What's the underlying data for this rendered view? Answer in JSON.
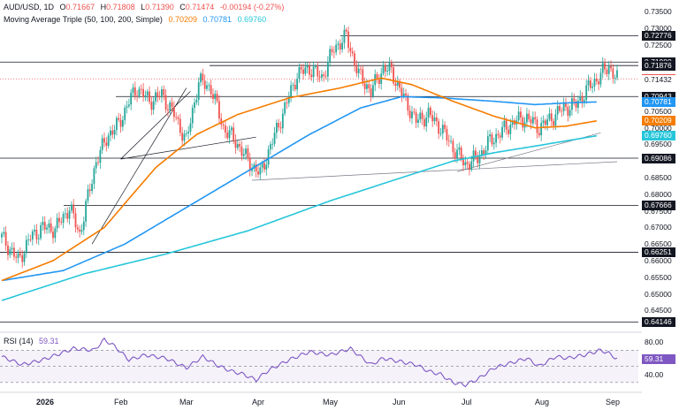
{
  "header": {
    "symbol": "AUD/USD, 1D",
    "ohlc": [
      {
        "label": "O",
        "value": "0.71667"
      },
      {
        "label": "H",
        "value": "0.71808"
      },
      {
        "label": "L",
        "value": "0.71390"
      },
      {
        "label": "C",
        "value": "0.71474"
      }
    ],
    "change": "-0.00194 (-0.27%)",
    "ma_title": "Moving Average Triple (50, 100, 200, Simple)",
    "ma_values": [
      "0.70209",
      "0.70781",
      "0.69760"
    ],
    "rsi_title": "RSI (14)",
    "rsi_value": "59.31"
  },
  "colors": {
    "up": "#26a69a",
    "down": "#ef5350",
    "ma50": "#f57c00",
    "ma100": "#2196f3",
    "ma200": "#26c6da",
    "rsi": "#7e57c2"
  },
  "chart_data": {
    "type": "candlestick",
    "y_range": [
      0.6395,
      0.7385
    ],
    "y_ticks": [
      "0.73500",
      "0.73000",
      "0.72500",
      "0.72000",
      "0.71500",
      "0.71000",
      "0.70500",
      "0.70000",
      "0.69500",
      "0.69000",
      "0.68500",
      "0.68000",
      "0.67500",
      "0.67000",
      "0.66500",
      "0.66000",
      "0.65500",
      "0.65000",
      "0.64500"
    ],
    "x_labels": [
      "2026",
      "Feb",
      "Mar",
      "Apr",
      "May",
      "Jun",
      "Jul",
      "Aug",
      "Sep"
    ],
    "level_labels": [
      {
        "value": 0.72776,
        "text": "0.72776",
        "style": "dark"
      },
      {
        "value": 0.7198,
        "text": "0.71980",
        "style": "dark"
      },
      {
        "value": 0.71876,
        "text": "0.71876",
        "style": "dark"
      },
      {
        "value": 0.71474,
        "text": "0.71474",
        "style": "red"
      },
      {
        "value": 0.71432,
        "text": "0.71432",
        "style": "plain"
      },
      {
        "value": 0.70943,
        "text": "0.70943",
        "style": "dark"
      },
      {
        "value": 0.70781,
        "text": "0.70781",
        "style": "blue"
      },
      {
        "value": 0.70209,
        "text": "0.70209",
        "style": "orange"
      },
      {
        "value": 0.6976,
        "text": "0.69760",
        "style": "cyan"
      },
      {
        "value": 0.69086,
        "text": "0.69086",
        "style": "dark"
      },
      {
        "value": 0.67666,
        "text": "0.67666",
        "style": "dark"
      },
      {
        "value": 0.66251,
        "text": "0.66251",
        "style": "dark"
      },
      {
        "value": 0.64146,
        "text": "0.64146",
        "style": "dark"
      }
    ],
    "close_anchors": [
      [
        0,
        0.667
      ],
      [
        8,
        0.66
      ],
      [
        14,
        0.667
      ],
      [
        20,
        0.67
      ],
      [
        26,
        0.6695
      ],
      [
        33,
        0.676
      ],
      [
        38,
        0.668
      ],
      [
        46,
        0.69
      ],
      [
        52,
        0.698
      ],
      [
        57,
        0.701
      ],
      [
        62,
        0.708
      ],
      [
        66,
        0.712
      ],
      [
        72,
        0.708
      ],
      [
        78,
        0.71
      ],
      [
        84,
        0.704
      ],
      [
        90,
        0.696
      ],
      [
        96,
        0.714
      ],
      [
        102,
        0.712
      ],
      [
        108,
        0.7
      ],
      [
        114,
        0.696
      ],
      [
        120,
        0.69
      ],
      [
        126,
        0.686
      ],
      [
        132,
        0.696
      ],
      [
        138,
        0.706
      ],
      [
        144,
        0.716
      ],
      [
        150,
        0.718
      ],
      [
        156,
        0.715
      ],
      [
        162,
        0.724
      ],
      [
        168,
        0.7275
      ],
      [
        174,
        0.716
      ],
      [
        180,
        0.711
      ],
      [
        186,
        0.718
      ],
      [
        190,
        0.717
      ],
      [
        196,
        0.709
      ],
      [
        202,
        0.702
      ],
      [
        208,
        0.704
      ],
      [
        214,
        0.7
      ],
      [
        220,
        0.694
      ],
      [
        226,
        0.689
      ],
      [
        232,
        0.691
      ],
      [
        238,
        0.696
      ],
      [
        244,
        0.699
      ],
      [
        250,
        0.702
      ],
      [
        256,
        0.703
      ],
      [
        262,
        0.7
      ],
      [
        268,
        0.703
      ],
      [
        274,
        0.706
      ],
      [
        280,
        0.707
      ],
      [
        286,
        0.712
      ],
      [
        292,
        0.716
      ],
      [
        296,
        0.7185
      ],
      [
        300,
        0.7147
      ]
    ],
    "ma50_anchors": [
      [
        0,
        0.654
      ],
      [
        25,
        0.66
      ],
      [
        50,
        0.67
      ],
      [
        75,
        0.688
      ],
      [
        95,
        0.698
      ],
      [
        115,
        0.704
      ],
      [
        140,
        0.709
      ],
      [
        165,
        0.712
      ],
      [
        185,
        0.715
      ],
      [
        200,
        0.713
      ],
      [
        220,
        0.708
      ],
      [
        240,
        0.7035
      ],
      [
        260,
        0.7
      ],
      [
        275,
        0.7005
      ],
      [
        290,
        0.7021
      ]
    ],
    "ma100_anchors": [
      [
        0,
        0.654
      ],
      [
        30,
        0.657
      ],
      [
        60,
        0.665
      ],
      [
        90,
        0.676
      ],
      [
        120,
        0.687
      ],
      [
        150,
        0.698
      ],
      [
        175,
        0.706
      ],
      [
        195,
        0.7094
      ],
      [
        215,
        0.709
      ],
      [
        240,
        0.708
      ],
      [
        260,
        0.707
      ],
      [
        275,
        0.7075
      ],
      [
        290,
        0.7078
      ]
    ],
    "ma200_anchors": [
      [
        0,
        0.648
      ],
      [
        40,
        0.656
      ],
      [
        80,
        0.662
      ],
      [
        120,
        0.669
      ],
      [
        160,
        0.678
      ],
      [
        200,
        0.686
      ],
      [
        220,
        0.69
      ],
      [
        240,
        0.6925
      ],
      [
        260,
        0.6945
      ],
      [
        290,
        0.6976
      ]
    ],
    "rsi_range": [
      20,
      90
    ],
    "rsi_ticks": [
      "80.00",
      "40.00"
    ],
    "rsi_band": [
      30,
      70
    ],
    "rsi_anchors": [
      [
        0,
        62
      ],
      [
        10,
        52
      ],
      [
        20,
        58
      ],
      [
        35,
        72
      ],
      [
        45,
        70
      ],
      [
        50,
        83
      ],
      [
        55,
        75
      ],
      [
        62,
        58
      ],
      [
        70,
        64
      ],
      [
        80,
        60
      ],
      [
        90,
        48
      ],
      [
        98,
        62
      ],
      [
        106,
        50
      ],
      [
        112,
        44
      ],
      [
        118,
        40
      ],
      [
        124,
        33
      ],
      [
        130,
        45
      ],
      [
        140,
        58
      ],
      [
        150,
        68
      ],
      [
        160,
        64
      ],
      [
        170,
        72
      ],
      [
        180,
        52
      ],
      [
        186,
        60
      ],
      [
        194,
        56
      ],
      [
        202,
        52
      ],
      [
        208,
        44
      ],
      [
        214,
        40
      ],
      [
        220,
        30
      ],
      [
        226,
        27
      ],
      [
        232,
        34
      ],
      [
        240,
        48
      ],
      [
        248,
        54
      ],
      [
        256,
        60
      ],
      [
        262,
        50
      ],
      [
        270,
        62
      ],
      [
        276,
        60
      ],
      [
        284,
        64
      ],
      [
        292,
        70
      ],
      [
        296,
        66
      ],
      [
        300,
        59.31
      ]
    ]
  }
}
